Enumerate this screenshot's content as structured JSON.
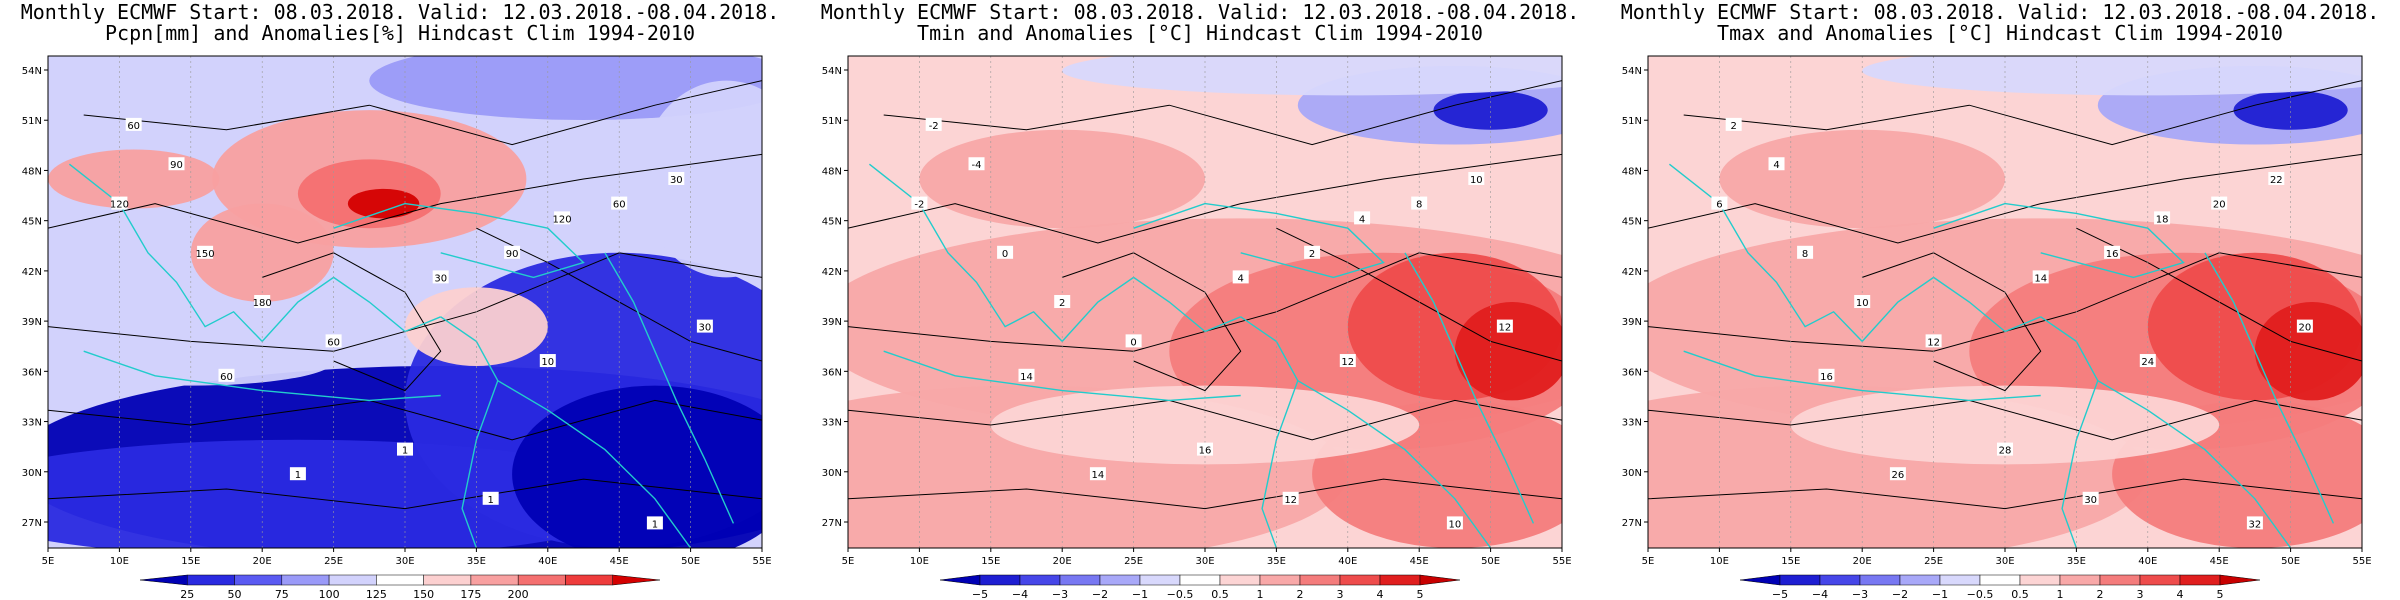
{
  "panels": [
    {
      "title_line1": "Monthly ECMWF Start: 08.03.2018. Valid: 12.03.2018.-08.04.2018.",
      "title_line2": "Pcpn[mm] and Anomalies[%] Hindcast Clim 1994-2010",
      "lat_labels": [
        "54N",
        "51N",
        "48N",
        "45N",
        "42N",
        "39N",
        "36N",
        "33N",
        "30N",
        "27N"
      ],
      "lon_labels": [
        "5E",
        "10E",
        "15E",
        "20E",
        "25E",
        "30E",
        "35E",
        "40E",
        "45E",
        "50E",
        "55E"
      ],
      "colorbar_labels": [
        "25",
        "50",
        "75",
        "100",
        "125",
        "150",
        "175",
        "200"
      ],
      "colorbar_colors": [
        "#0000b4",
        "#2a2ae0",
        "#5a5af2",
        "#9a9af8",
        "#d2d2fc",
        "#ffffff",
        "#fcd0d0",
        "#f8a0a0",
        "#f47070",
        "#ee3c3c",
        "#d40000"
      ],
      "contour_labels": [
        "60",
        "90",
        "120",
        "150",
        "180",
        "60",
        "30",
        "90",
        "120",
        "60",
        "30",
        "10",
        "1",
        "1",
        "1",
        "1",
        "30",
        "60"
      ]
    },
    {
      "title_line1": "Monthly ECMWF Start: 08.03.2018. Valid: 12.03.2018.-08.04.2018.",
      "title_line2": "Tmin and Anomalies [°C] Hindcast Clim 1994-2010",
      "lat_labels": [
        "54N",
        "51N",
        "48N",
        "45N",
        "42N",
        "39N",
        "36N",
        "33N",
        "30N",
        "27N"
      ],
      "lon_labels": [
        "5E",
        "10E",
        "15E",
        "20E",
        "25E",
        "30E",
        "35E",
        "40E",
        "45E",
        "50E",
        "55E"
      ],
      "colorbar_labels": [
        "−5",
        "−4",
        "−3",
        "−2",
        "−1",
        "−0.5",
        "0.5",
        "1",
        "2",
        "3",
        "4",
        "5"
      ],
      "colorbar_colors": [
        "#0000b4",
        "#1e1ed2",
        "#4646e8",
        "#7878f2",
        "#a8a8f8",
        "#d8d8fc",
        "#ffffff",
        "#fcd4d4",
        "#f8a8a8",
        "#f47c7c",
        "#ee4c4c",
        "#e01e1e",
        "#c80000"
      ],
      "contour_labels": [
        "-2",
        "-4",
        "-2",
        "0",
        "2",
        "0",
        "4",
        "2",
        "4",
        "8",
        "10",
        "12",
        "14",
        "16",
        "12",
        "10",
        "12",
        "14"
      ]
    },
    {
      "title_line1": "Monthly ECMWF Start: 08.03.2018. Valid: 12.03.2018.-08.04.2018.",
      "title_line2": "Tmax and Anomalies [°C] Hindcast Clim 1994-2010",
      "lat_labels": [
        "54N",
        "51N",
        "48N",
        "45N",
        "42N",
        "39N",
        "36N",
        "33N",
        "30N",
        "27N"
      ],
      "lon_labels": [
        "5E",
        "10E",
        "15E",
        "20E",
        "25E",
        "30E",
        "35E",
        "40E",
        "45E",
        "50E",
        "55E"
      ],
      "colorbar_labels": [
        "−5",
        "−4",
        "−3",
        "−2",
        "−1",
        "−0.5",
        "0.5",
        "1",
        "2",
        "3",
        "4",
        "5"
      ],
      "colorbar_colors": [
        "#0000b4",
        "#1e1ed2",
        "#4646e8",
        "#7878f2",
        "#a8a8f8",
        "#d8d8fc",
        "#ffffff",
        "#fcd4d4",
        "#f8a8a8",
        "#f47c7c",
        "#ee4c4c",
        "#e01e1e",
        "#c80000"
      ],
      "contour_labels": [
        "2",
        "4",
        "6",
        "8",
        "10",
        "12",
        "14",
        "16",
        "18",
        "20",
        "22",
        "24",
        "26",
        "28",
        "30",
        "32",
        "20",
        "16"
      ]
    }
  ]
}
